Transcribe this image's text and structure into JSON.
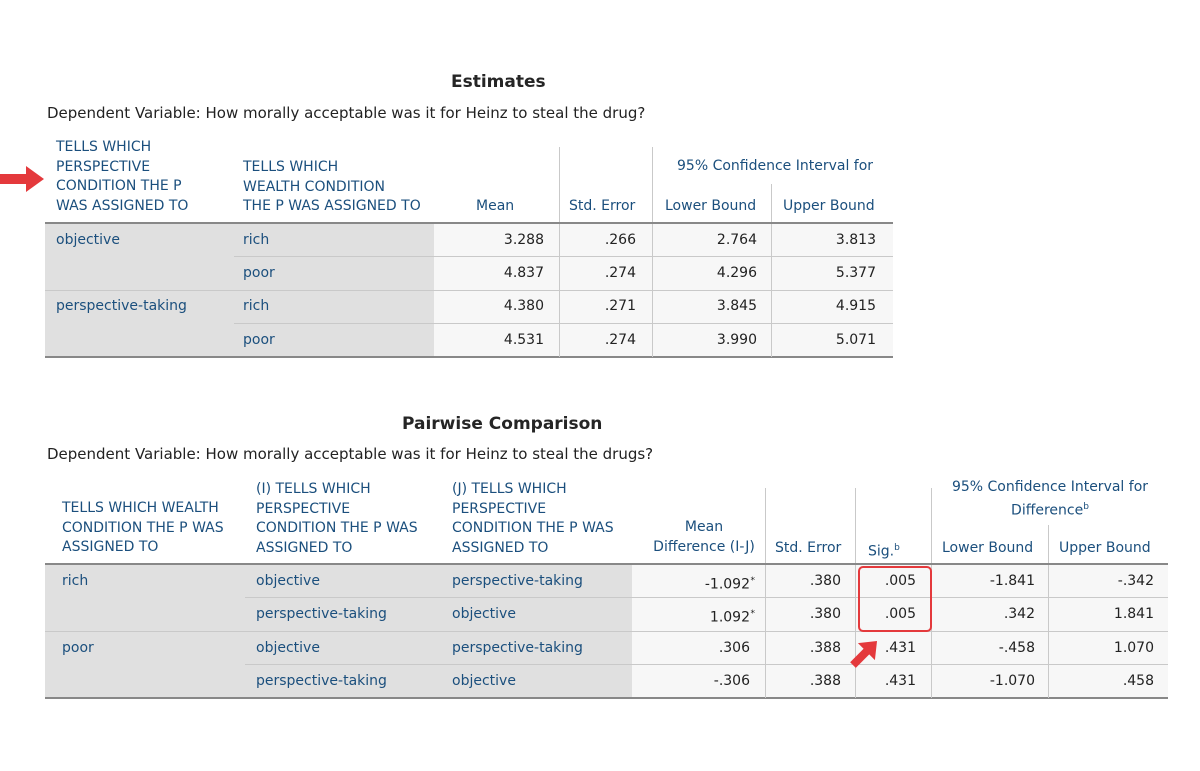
{
  "estimates": {
    "title": "Estimates",
    "dependent_variable": "Dependent Variable: How morally acceptable was it for Heinz to steal the drug?",
    "headers": {
      "perspective": [
        "TELLS WHICH",
        "PERSPECTIVE",
        "CONDITION THE P",
        "WAS ASSIGNED TO"
      ],
      "wealth": [
        "TELLS WHICH",
        "WEALTH CONDITION",
        "THE P WAS ASSIGNED TO"
      ],
      "mean": "Mean",
      "std_error": "Std. Error",
      "ci_group": "95% Confidence Interval for",
      "lower": "Lower Bound",
      "upper": "Upper Bound"
    },
    "rows": [
      {
        "group": "objective",
        "wealth": "rich",
        "mean": "3.288",
        "se": ".266",
        "lower": "2.764",
        "upper": "3.813"
      },
      {
        "group": "",
        "wealth": "poor",
        "mean": "4.837",
        "se": ".274",
        "lower": "4.296",
        "upper": "5.377"
      },
      {
        "group": "perspective-taking",
        "wealth": "rich",
        "mean": "4.380",
        "se": ".271",
        "lower": "3.845",
        "upper": "4.915"
      },
      {
        "group": "",
        "wealth": "poor",
        "mean": "4.531",
        "se": ".274",
        "lower": "3.990",
        "upper": "5.071"
      }
    ]
  },
  "pairwise": {
    "title": "Pairwise Comparison",
    "dependent_variable": "Dependent Variable: How morally acceptable was it for Heinz to steal the drugs?",
    "headers": {
      "wealth": [
        "TELLS WHICH WEALTH",
        "CONDITION THE P WAS",
        "ASSIGNED TO"
      ],
      "i_persp": [
        "(I) TELLS WHICH",
        "PERSPECTIVE",
        "CONDITION THE P WAS",
        "ASSIGNED TO"
      ],
      "j_persp": [
        "(J) TELLS WHICH",
        "PERSPECTIVE",
        "CONDITION THE P WAS",
        "ASSIGNED TO"
      ],
      "mean_diff": [
        "Mean",
        "Difference (I-J)"
      ],
      "std_error": "Std. Error",
      "sig": "Sig.",
      "sig_sup": "b",
      "ci_group": [
        "95% Confidence Interval for",
        "Difference"
      ],
      "ci_sup": "b",
      "lower": "Lower Bound",
      "upper": "Upper Bound"
    },
    "rows": [
      {
        "wealth": "rich",
        "i": "objective",
        "j": "perspective-taking",
        "md": "-1.092",
        "md_sup": "*",
        "se": ".380",
        "sig": ".005",
        "lower": "-1.841",
        "upper": "-.342"
      },
      {
        "wealth": "",
        "i": "perspective-taking",
        "j": "objective",
        "md": "1.092",
        "md_sup": "*",
        "se": ".380",
        "sig": ".005",
        "lower": ".342",
        "upper": "1.841"
      },
      {
        "wealth": "poor",
        "i": "objective",
        "j": "perspective-taking",
        "md": ".306",
        "md_sup": "",
        "se": ".388",
        "sig": ".431",
        "lower": "-.458",
        "upper": "1.070"
      },
      {
        "wealth": "",
        "i": "perspective-taking",
        "j": "objective",
        "md": "-.306",
        "md_sup": "",
        "se": ".388",
        "sig": ".431",
        "lower": "-1.070",
        "upper": ".458"
      }
    ]
  },
  "annotations": {
    "color": "#e4393c",
    "arrow_left_icon": "arrow-right-icon",
    "arrow_sig_icon": "arrow-up-right-icon"
  }
}
